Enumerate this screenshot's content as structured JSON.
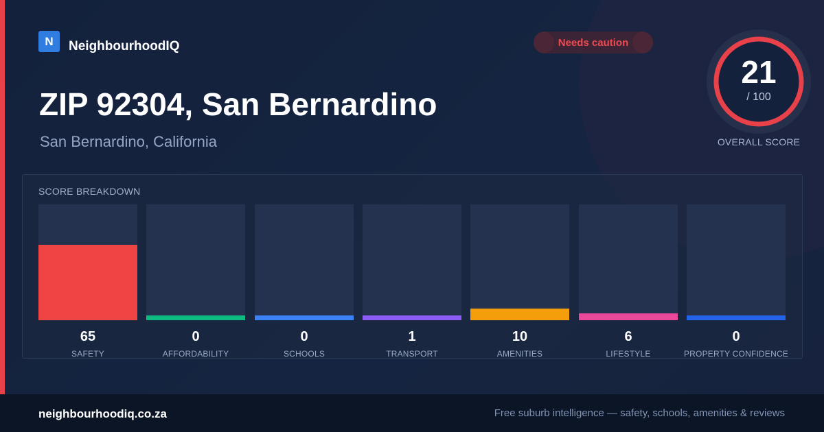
{
  "brand": {
    "logo_letter": "N",
    "name": "NeighbourhoodIQ",
    "logo_color": "#2f7de1"
  },
  "status_badge": {
    "label": "Needs caution",
    "color": "#ef4a50"
  },
  "location": {
    "title": "ZIP 92304, San Bernardino",
    "subtitle": "San Bernardino, California"
  },
  "overall_score": {
    "value": "21",
    "max_label": "/ 100",
    "caption": "OVERALL SCORE",
    "value_fraction": 0.21,
    "ring_color": "#e8414a"
  },
  "breakdown": {
    "title": "SCORE BREAKDOWN",
    "max_value": 100,
    "items": [
      {
        "label": "SAFETY",
        "value": "65",
        "color": "#ef4444"
      },
      {
        "label": "AFFORDABILITY",
        "value": "0",
        "color": "#10b981"
      },
      {
        "label": "SCHOOLS",
        "value": "0",
        "color": "#3b82f6"
      },
      {
        "label": "TRANSPORT",
        "value": "1",
        "color": "#8b5cf6"
      },
      {
        "label": "AMENITIES",
        "value": "10",
        "color": "#f59e0b"
      },
      {
        "label": "LIFESTYLE",
        "value": "6",
        "color": "#ec4899"
      },
      {
        "label": "PROPERTY CONFIDENCE",
        "value": "0",
        "color": "#2563eb"
      }
    ]
  },
  "footer": {
    "domain": "neighbourhoodiq.co.za",
    "tagline": "Free suburb intelligence — safety, schools, amenities & reviews"
  }
}
